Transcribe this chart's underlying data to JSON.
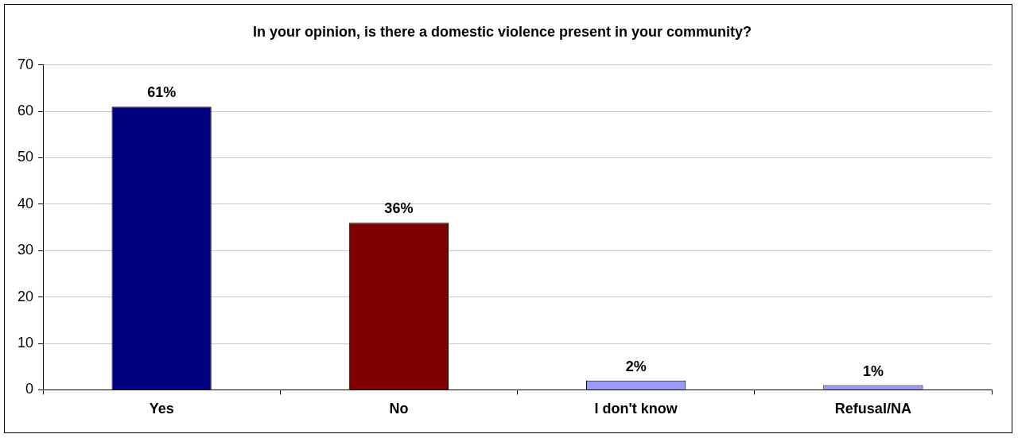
{
  "chart_data": {
    "type": "bar",
    "title": "In your opinion, is there a domestic violence present in your community?",
    "categories": [
      "Yes",
      "No",
      "I don't know",
      "Refusal/NA"
    ],
    "values": [
      61,
      36,
      2,
      1
    ],
    "colors": [
      "#000080",
      "#800000",
      "#9999ff",
      "#9999ff"
    ],
    "value_labels": [
      "61%",
      "36%",
      "2%",
      "1%"
    ],
    "ylim": [
      0,
      70
    ],
    "yticks": [
      0,
      10,
      20,
      30,
      40,
      50,
      60,
      70
    ],
    "grid": "y",
    "legend": false
  }
}
